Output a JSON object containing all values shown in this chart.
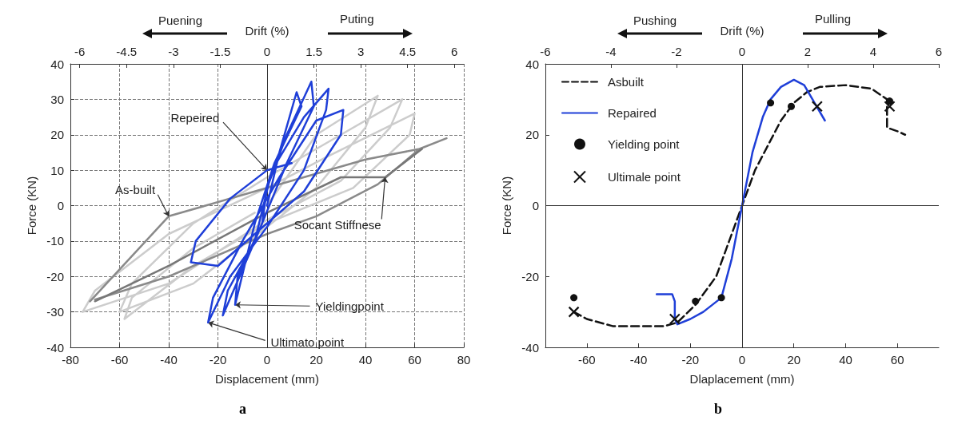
{
  "chart_data": [
    {
      "type": "line",
      "xlabel": "Displacement (mm)",
      "ylabel": "Force (KN)",
      "x2label": "Drift (%)",
      "xlim": [
        -80,
        80
      ],
      "xticks": [
        -80,
        -60,
        -40,
        -20,
        0,
        20,
        40,
        60,
        80
      ],
      "ylim": [
        -40,
        40
      ],
      "yticks": [
        -40,
        -30,
        -20,
        -10,
        0,
        10,
        20,
        30,
        40
      ],
      "x2lim": [
        -6.3,
        6.3
      ],
      "x2ticks": [
        -6,
        -4.5,
        -3,
        -1.5,
        0,
        1.5,
        3,
        4.5,
        6
      ],
      "grid": true,
      "legend": false,
      "marker": "none",
      "line_style": "solid",
      "ref_lines": [
        {
          "axis": "x",
          "value": 0
        }
      ],
      "annotations": [
        "Puening",
        "Puting",
        "a",
        {
          "text": "Repeired",
          "x": 0,
          "y": 10
        },
        {
          "text": "As-built",
          "x": -40,
          "y": -3
        },
        {
          "text": "Socant Stiffnese",
          "x": 48,
          "y": 8
        },
        {
          "text": "Yieldingpoint",
          "x": -13,
          "y": -28
        },
        {
          "text": "Ultimato point",
          "x": -24,
          "y": -33
        }
      ],
      "series": [
        {
          "color": "#cccccc",
          "x": [
            0,
            20,
            45,
            40,
            20,
            0,
            -30,
            -60,
            -55,
            -30,
            0,
            30,
            55,
            50,
            30,
            0,
            -40,
            -75,
            -70,
            -40,
            0,
            25,
            60,
            58,
            35,
            0,
            -30,
            -58,
            -55,
            -30,
            -5
          ],
          "values": [
            0,
            20,
            31,
            22,
            5,
            -6,
            -22,
            -30,
            -22,
            -5,
            8,
            20,
            30,
            22,
            7,
            -4,
            -22,
            -30,
            -24,
            -8,
            5,
            14,
            26,
            20,
            5,
            -5,
            -17,
            -32,
            -26,
            -12,
            -2
          ]
        },
        {
          "color": "#8a8a8a",
          "x": [
            -72,
            -40,
            0,
            40,
            62,
            73,
            62,
            45,
            20,
            0,
            -40,
            -63,
            -70
          ],
          "values": [
            -27,
            -3,
            5,
            13,
            16,
            19,
            16,
            6,
            -3,
            -8,
            -20,
            -25,
            -26.5
          ]
        },
        {
          "color": "#777777",
          "x": [
            -70,
            -40,
            0,
            30,
            48,
            63
          ],
          "values": [
            -27,
            -17,
            -2,
            8,
            8,
            16
          ]
        },
        {
          "color": "#1f3fd8",
          "x": [
            0,
            5,
            12,
            14,
            3,
            -5,
            -13,
            -12,
            -2,
            0,
            8,
            18,
            19,
            8,
            -5,
            -18,
            -16,
            -5,
            2,
            15,
            25,
            24,
            15,
            0,
            -15,
            -24,
            -22,
            -10,
            5,
            20,
            31,
            30,
            15,
            -5,
            -20,
            -31,
            -29,
            -15,
            0,
            10
          ],
          "values": [
            0,
            15,
            32,
            28,
            12,
            -5,
            -28,
            -20,
            -5,
            5,
            20,
            35,
            28,
            12,
            -10,
            -31,
            -24,
            -10,
            10,
            25,
            33,
            27,
            10,
            -6,
            -20,
            -33,
            -26,
            -10,
            8,
            24,
            27,
            20,
            4,
            -8,
            -17,
            -16,
            -10,
            2,
            10,
            12
          ]
        }
      ]
    },
    {
      "type": "line",
      "xlabel": "Dlaplacement (mm)",
      "ylabel": "Force (KN)",
      "x2label": "Drift (%)",
      "xlim": [
        -76,
        76
      ],
      "xticks": [
        -60,
        -40,
        -20,
        0,
        20,
        40,
        60
      ],
      "ylim": [
        -40,
        40
      ],
      "yticks": [
        -40,
        -20,
        0,
        20,
        40
      ],
      "x2lim": [
        -6,
        6
      ],
      "x2ticks": [
        -6,
        -4,
        -2,
        0,
        2,
        4,
        6
      ],
      "grid": false,
      "legend": "top left",
      "ref_lines": [
        {
          "axis": "x",
          "value": 0
        },
        {
          "axis": "y",
          "value": 0
        }
      ],
      "annotations": [
        "Pushing",
        "Pulling",
        "b"
      ],
      "series": [
        {
          "name": "Asbuilt",
          "color": "#111111",
          "line_style": "dashed",
          "marker": "none",
          "x": [
            -65,
            -60,
            -50,
            -40,
            -30,
            -25,
            -18,
            -10,
            -5,
            0,
            5,
            10,
            15,
            20,
            25,
            30,
            40,
            50,
            56,
            56,
            60,
            63
          ],
          "values": [
            -30,
            -32,
            -34,
            -34,
            -34,
            -33,
            -28,
            -20,
            -10,
            0,
            10,
            17,
            24,
            29,
            32,
            33.5,
            34,
            33,
            30,
            22,
            21,
            20
          ]
        },
        {
          "name": "Repaired",
          "color": "#1f3fd8",
          "line_style": "solid",
          "marker": "none",
          "x": [
            -33,
            -27,
            -26,
            -26,
            -25,
            -20,
            -15,
            -8,
            -4,
            0,
            4,
            8,
            11,
            15,
            20,
            24,
            28,
            32
          ],
          "values": [
            -25,
            -25,
            -27,
            -32,
            -33.5,
            -32,
            -30,
            -26,
            -15,
            0,
            15,
            25,
            30,
            33.5,
            35.5,
            34,
            29,
            24
          ]
        },
        {
          "name": "Yielding point",
          "type": "scatter",
          "color": "#111111",
          "marker": "circle",
          "x": [
            -65,
            -18,
            -8,
            11,
            19,
            57
          ],
          "values": [
            -26,
            -27,
            -26,
            29,
            28,
            29.5
          ]
        },
        {
          "name": "Ultimale point",
          "type": "scatter",
          "color": "#111111",
          "marker": "cross",
          "x": [
            -65,
            -26,
            29,
            57
          ],
          "values": [
            -30,
            -32,
            28,
            28
          ]
        }
      ]
    }
  ]
}
